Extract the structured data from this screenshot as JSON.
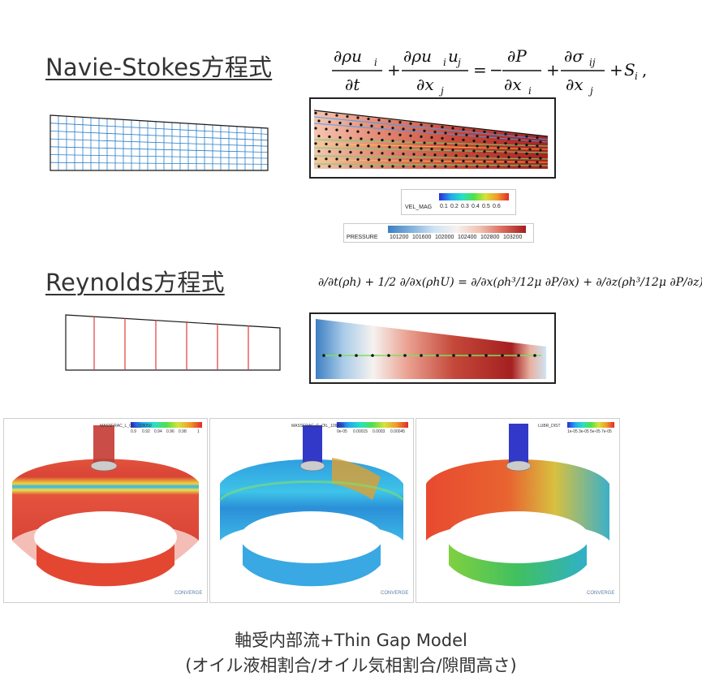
{
  "sections": {
    "navier": {
      "title": "Navie-Stokes方程式",
      "equation": {
        "term1_num": "∂ρu",
        "term1_num_sub": "i",
        "term1_den": "∂t",
        "term2_num": "∂ρu",
        "term2_num_sub1": "i",
        "term2_num_mid": "u",
        "term2_num_sub2": "j",
        "term2_den": "∂x",
        "term2_den_sub": "j",
        "term3_num": "∂P",
        "term3_den": "∂x",
        "term3_den_sub": "i",
        "term4_num": "∂σ",
        "term4_num_sub": "ij",
        "term4_den": "∂x",
        "term4_den_sub": "j",
        "source": "S",
        "source_sub": "i"
      }
    },
    "reynolds": {
      "title": "Reynolds方程式",
      "equation": "∂/∂t(ρh) + 1/2 ∂/∂x(ρhU) = ∂/∂x(ρh³/12μ ∂P/∂x) + ∂/∂z(ρh³/12μ ∂P/∂z),"
    }
  },
  "legends": {
    "velocity": {
      "name": "VEL_MAG",
      "ticks": [
        "0.1",
        "0.2",
        "0.3",
        "0.4",
        "0.5",
        "0.6"
      ]
    },
    "pressure": {
      "name": "PRESSURE",
      "ticks": [
        "101200",
        "101600",
        "102000",
        "102400",
        "102800",
        "103200"
      ]
    }
  },
  "panels": [
    {
      "label": "MASSFRAC_L_OIL_109050",
      "ticks": [
        "0.9",
        "0.92",
        "0.94",
        "0.96",
        "0.98",
        "1"
      ],
      "brand": "CONVERGE"
    },
    {
      "label": "MASSFRAC_G_OIL_109050",
      "ticks": [
        "0e-05",
        "0.00015",
        "0.0003",
        "0.00045"
      ],
      "brand": "CONVERGE"
    },
    {
      "label": "LUBR_DIST",
      "ticks": [
        "1e-05",
        "3e-05",
        "5e-05",
        "7e-05"
      ],
      "brand": "CONVERGE"
    }
  ],
  "caption": {
    "line1": "軸受内部流+Thin Gap Model",
    "line2": "(オイル液相割合/オイル気相割合/隙間高さ)"
  },
  "colors": {
    "mesh_blue": "#2a7ec8",
    "mesh_red": "#e23a3a",
    "pressure_low": "#3d7fc2",
    "pressure_high": "#9e1a1a"
  }
}
